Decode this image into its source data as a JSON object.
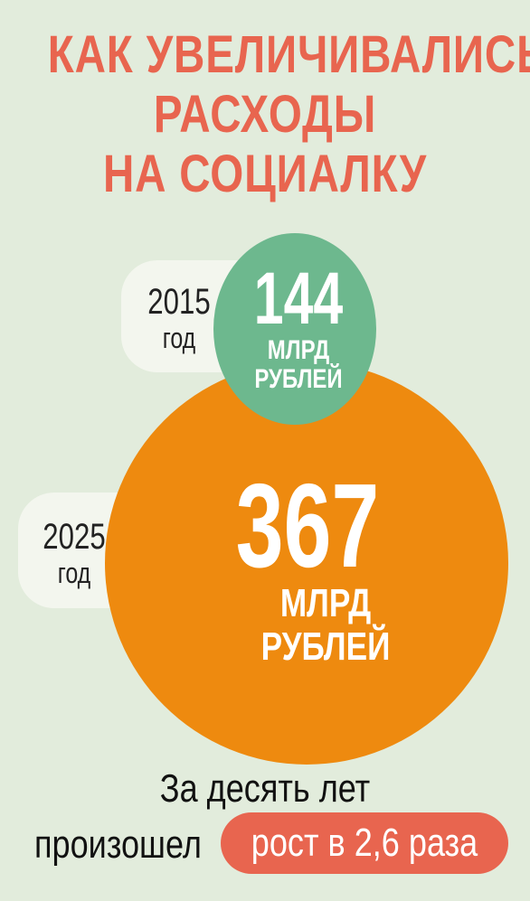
{
  "title": {
    "line1": "КАК УВЕЛИЧИВАЛИСЬ",
    "line2": "РАСХОДЫ",
    "line3": "НА СОЦИАЛКУ"
  },
  "chart_data": {
    "type": "bubble",
    "title": "КАК УВЕЛИЧИВАЛИСЬ РАСХОДЫ НА СОЦИАЛКУ",
    "unit": "МЛРД РУБЛЕЙ",
    "series": [
      {
        "year": "2015",
        "year_suffix": "год",
        "value": 144,
        "value_label": "144",
        "unit_line1": "МЛРД",
        "unit_line2": "РУБЛЕЙ",
        "color": "#6db88e"
      },
      {
        "year": "2025",
        "year_suffix": "год",
        "value": 367,
        "value_label": "367",
        "unit_line1": "МЛРД",
        "unit_line2": "РУБЛЕЙ",
        "color": "#ee8a0f"
      }
    ]
  },
  "footer": {
    "line1": "За десять лет",
    "line2_prefix": "произошел",
    "badge": "рост в 2,6 раза",
    "badge_color": "#e8654f"
  }
}
